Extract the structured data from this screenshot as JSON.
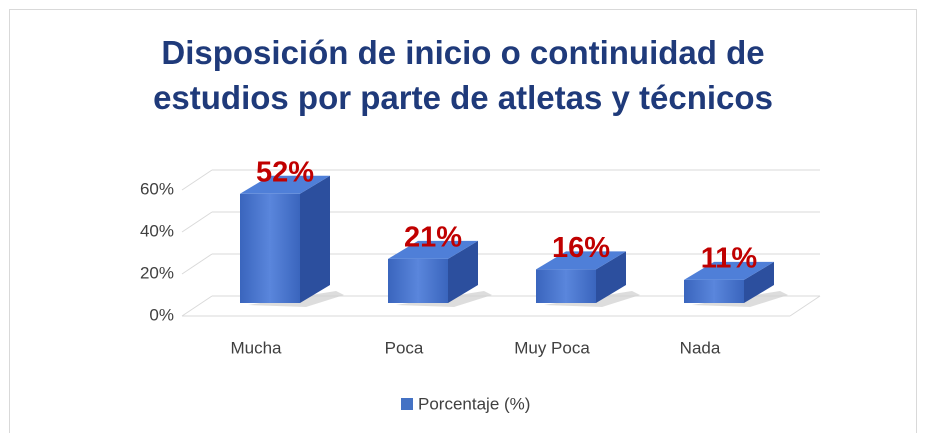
{
  "chart_data": {
    "type": "bar3d",
    "title": "Disposición de inicio o continuidad de estudios por parte de atletas y técnicos",
    "categories": [
      "Mucha",
      "Poca",
      "Muy Poca",
      "Nada"
    ],
    "series": [
      {
        "name": "Porcentaje (%)",
        "color": "#4472c4",
        "values": [
          52,
          21,
          16,
          11
        ],
        "value_labels": [
          "52%",
          "21%",
          "16%",
          "11%"
        ]
      }
    ],
    "ylim": [
      0,
      60
    ],
    "yticks": [
      {
        "value": 0,
        "label": "0%"
      },
      {
        "value": 20,
        "label": "20%"
      },
      {
        "value": 40,
        "label": "40%"
      },
      {
        "value": 60,
        "label": "60%"
      }
    ],
    "grid": true,
    "legend": "bottom"
  }
}
